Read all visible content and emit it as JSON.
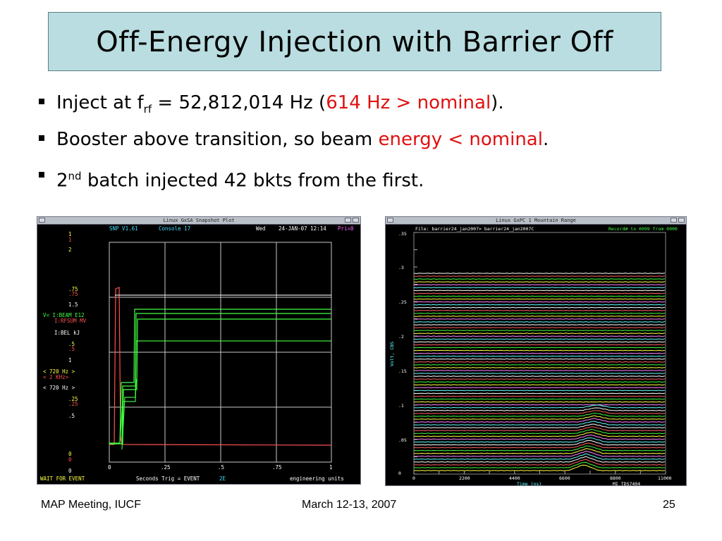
{
  "slide": {
    "title": "Off-Energy Injection with Barrier Off",
    "bullets": [
      {
        "pre": "Inject at f",
        "sub": "rf",
        "mid": " = 52,812,014 Hz (",
        "red": "614 Hz > nominal",
        "post": ")."
      },
      {
        "pre": "Booster above transition, so beam ",
        "red": "energy < nominal",
        "post": "."
      },
      {
        "pre": "2",
        "sup": "nd",
        "post": " batch injected 42 bkts from the first."
      }
    ]
  },
  "left_plot": {
    "window_title": "Linux GxSA  Snapshot Plot",
    "header": {
      "app": "SNP V1.61",
      "console": "Console  17",
      "day": "Wed",
      "datetime": "24-JAN-07 12:14",
      "pri": "Pri=0"
    },
    "left_labels": [
      "1",
      "1",
      "2",
      ".75",
      ".75",
      "1.5",
      "V= I:BEAM   E12",
      "I:RFSUM  MV",
      "I:BEL    kJ",
      ".5",
      ".5",
      "1",
      "< 720 Hz >",
      "< 2   KHz>",
      "< 720 Hz >",
      ".25",
      ".25",
      ".5",
      "0",
      "0",
      "0"
    ],
    "x_ticks": [
      "0",
      ".25",
      ".5",
      ".75",
      "1"
    ],
    "footer": {
      "status": "WAIT FOR EVENT",
      "units": "Seconds  Trig = EVENT",
      "code": "2E",
      "right": "engineering units"
    },
    "colors": {
      "grid": "#c8c8c8",
      "green": "#40ff40",
      "red": "#ff5050",
      "cyan": "#40e0ff",
      "magenta": "#ff60ff",
      "yellow": "#ffff40"
    }
  },
  "right_plot": {
    "window_title": "Linux GxPC 1  Mountain Range",
    "file_label": "File: barrier24_jan2007>   barrier24_jan2007C",
    "record_label": "Record# to 0099 from 0000",
    "y_ticks": [
      ".35",
      ".3",
      ".25",
      ".2",
      ".15",
      ".1",
      ".05",
      "0"
    ],
    "y_label": "Volt, CBS",
    "x_ticks": [
      "0",
      "2200",
      "4400",
      "6600",
      "8800",
      "11000"
    ],
    "x_label": "Time (ns)",
    "device_label": "MI TDS7404",
    "trace_colors": [
      "#ffffff",
      "#ff6060",
      "#40ff40",
      "#ffff40",
      "#ff80ff",
      "#60ffff"
    ]
  },
  "footer": {
    "left": "MAP Meeting, IUCF",
    "center": "March 12-13, 2007",
    "right": "25"
  }
}
